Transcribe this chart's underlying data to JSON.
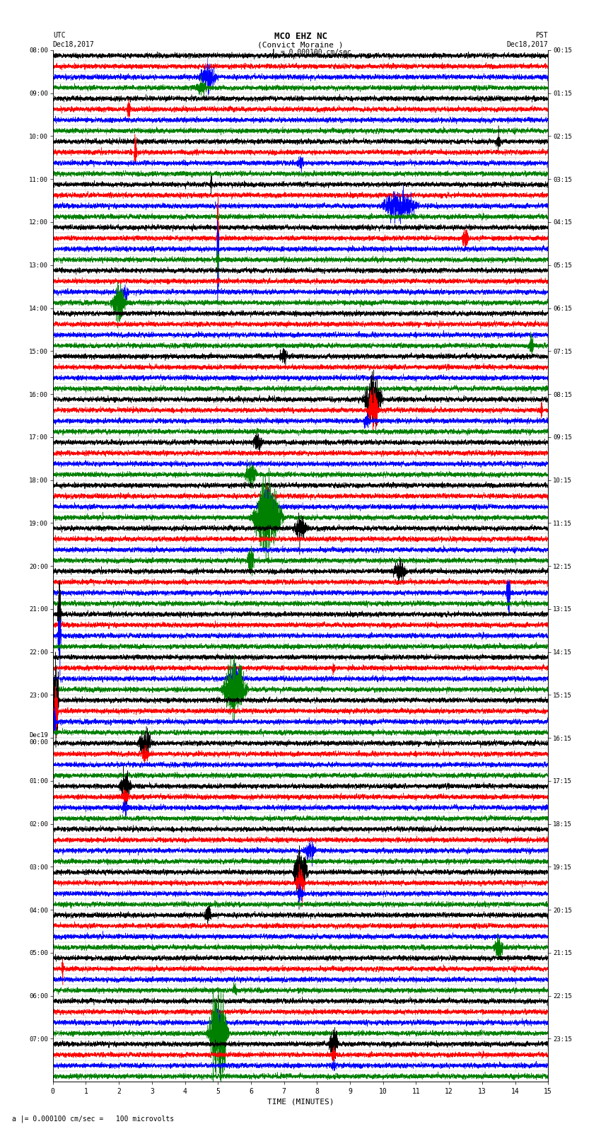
{
  "title_line1": "MCO EHZ NC",
  "title_line2": "(Convict Moraine )",
  "scale_label": " = 0.000100 cm/sec",
  "footer_label": "a |= 0.000100 cm/sec =   100 microvolts",
  "utc_label": "UTC",
  "utc_date": "Dec18,2017",
  "pst_label": "PST",
  "pst_date": "Dec18,2017",
  "xlabel": "TIME (MINUTES)",
  "left_times": [
    "08:00",
    "09:00",
    "10:00",
    "11:00",
    "12:00",
    "13:00",
    "14:00",
    "15:00",
    "16:00",
    "17:00",
    "18:00",
    "19:00",
    "20:00",
    "21:00",
    "22:00",
    "23:00",
    "Dec19\n00:00",
    "01:00",
    "02:00",
    "03:00",
    "04:00",
    "05:00",
    "06:00",
    "07:00"
  ],
  "right_times": [
    "00:15",
    "01:15",
    "02:15",
    "03:15",
    "04:15",
    "05:15",
    "06:15",
    "07:15",
    "08:15",
    "09:15",
    "10:15",
    "11:15",
    "12:15",
    "13:15",
    "14:15",
    "15:15",
    "16:15",
    "17:15",
    "18:15",
    "19:15",
    "20:15",
    "21:15",
    "22:15",
    "23:15"
  ],
  "n_rows": 24,
  "traces_per_row": 4,
  "colors": [
    "black",
    "red",
    "blue",
    "green"
  ],
  "bg_color": "white",
  "grid_color": "#aaaaaa",
  "minutes": 15,
  "fig_width": 8.5,
  "fig_height": 16.13,
  "dpi": 100
}
